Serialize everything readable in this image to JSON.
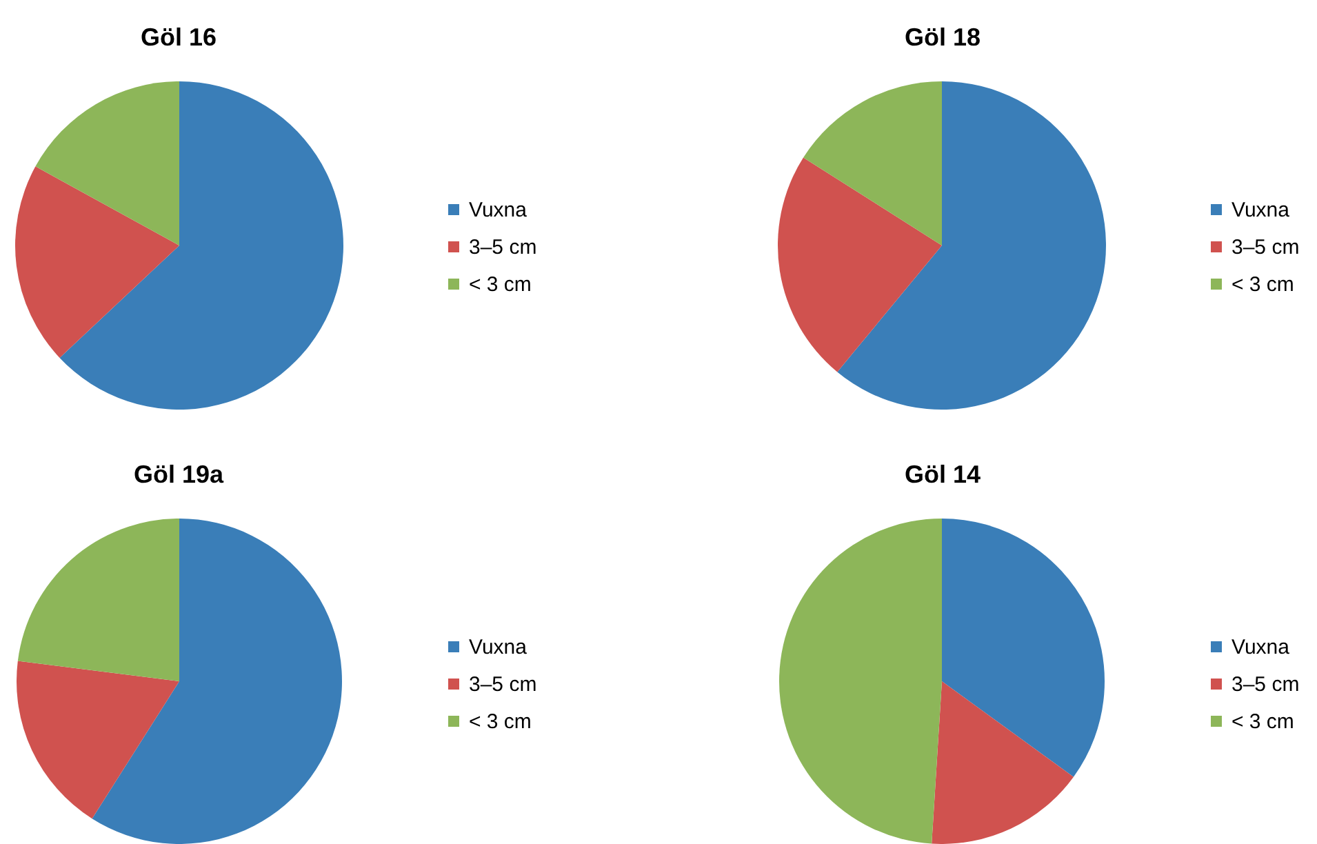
{
  "chart_data": [
    {
      "type": "pie",
      "title": "Göl 16",
      "categories": [
        "Vuxna",
        "3–5 cm",
        "< 3 cm"
      ],
      "values": [
        63,
        20,
        17
      ],
      "colors": [
        "#3a7eb8",
        "#d0524f",
        "#8db659"
      ],
      "legend": "right"
    },
    {
      "type": "pie",
      "title": "Göl 18",
      "categories": [
        "Vuxna",
        "3–5 cm",
        "< 3 cm"
      ],
      "values": [
        61,
        23,
        16
      ],
      "colors": [
        "#3a7eb8",
        "#d0524f",
        "#8db659"
      ],
      "legend": "right"
    },
    {
      "type": "pie",
      "title": "Göl 19a",
      "categories": [
        "Vuxna",
        "3–5 cm",
        "< 3 cm"
      ],
      "values": [
        59,
        18,
        23
      ],
      "colors": [
        "#3a7eb8",
        "#d0524f",
        "#8db659"
      ],
      "legend": "right"
    },
    {
      "type": "pie",
      "title": "Göl 14",
      "categories": [
        "Vuxna",
        "3–5 cm",
        "< 3 cm"
      ],
      "values": [
        35,
        16,
        49
      ],
      "colors": [
        "#3a7eb8",
        "#d0524f",
        "#8db659"
      ],
      "legend": "right"
    }
  ]
}
